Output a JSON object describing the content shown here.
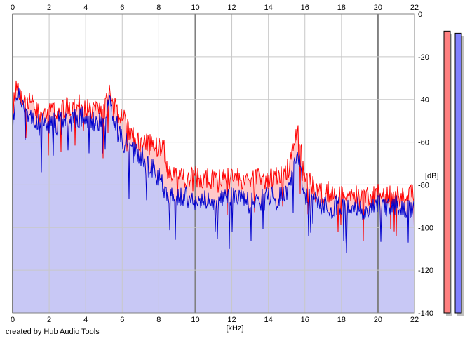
{
  "colors": {
    "background": "#ffffff",
    "plot_background": "#ffffff",
    "grid": "#c8c8c8",
    "grid_major": "#808080",
    "left_line": "#ff0000",
    "left_fill": "#ffc8c8",
    "right_line": "#0000cc",
    "right_fill": "#c8c8f5",
    "left_meter": "#ff8080",
    "right_meter": "#8080ff",
    "meter_shadow": "#c0c0c0"
  },
  "credit": "created by Hub Audio Tools",
  "chart_data": {
    "type": "area",
    "title": "",
    "xlabel": "[kHz]",
    "ylabel": "[dB]",
    "xlim": [
      0,
      22
    ],
    "ylim": [
      -140,
      0
    ],
    "x_ticks": [
      "0",
      "2",
      "4",
      "6",
      "8",
      "10",
      "12",
      "14",
      "16",
      "18",
      "20",
      "22"
    ],
    "y_ticks": [
      "0",
      "-20",
      "-40",
      "-60",
      "-80",
      "-100",
      "-120",
      "-140"
    ],
    "x_major_ticks": [
      0,
      10,
      20
    ],
    "grid": true,
    "series": [
      {
        "channel": "left",
        "color": "#ff0000",
        "x": [
          0,
          0.2,
          0.5,
          1,
          1.5,
          2,
          2.5,
          3,
          3.5,
          4,
          4.5,
          5,
          5.3,
          5.5,
          6,
          6.5,
          7,
          7.5,
          8,
          8.2,
          8.5,
          9,
          9.5,
          10,
          10.5,
          11,
          11.5,
          12,
          12.5,
          13,
          13.5,
          14,
          14.5,
          15,
          15.3,
          15.5,
          15.7,
          16,
          16.5,
          17,
          17.5,
          18,
          18.5,
          19,
          19.5,
          20,
          20.5,
          21,
          21.5,
          22
        ],
        "values": [
          -42,
          -28,
          -34,
          -38,
          -42,
          -40,
          -41,
          -40,
          -39,
          -40,
          -40,
          -42,
          -30,
          -38,
          -45,
          -52,
          -56,
          -56,
          -58,
          -55,
          -70,
          -71,
          -72,
          -72,
          -72,
          -73,
          -72,
          -72,
          -73,
          -73,
          -72,
          -73,
          -72,
          -70,
          -60,
          -50,
          -55,
          -72,
          -78,
          -79,
          -80,
          -80,
          -81,
          -82,
          -81,
          -81,
          -80,
          -81,
          -80,
          -82
        ]
      },
      {
        "channel": "right",
        "color": "#0000cc",
        "x": [
          0,
          0.2,
          0.5,
          1,
          1.5,
          2,
          2.5,
          3,
          3.5,
          4,
          4.5,
          5,
          5.3,
          5.5,
          6,
          6.5,
          7,
          7.5,
          8,
          8.2,
          8.5,
          9,
          9.5,
          10,
          10.5,
          11,
          11.5,
          12,
          12.5,
          13,
          13.5,
          14,
          14.5,
          15,
          15.3,
          15.5,
          15.7,
          16,
          16.5,
          17,
          17.5,
          18,
          18.5,
          19,
          19.5,
          20,
          20.5,
          21,
          21.5,
          22
        ],
        "values": [
          -50,
          -32,
          -38,
          -44,
          -48,
          -46,
          -46,
          -46,
          -45,
          -45,
          -46,
          -46,
          -38,
          -44,
          -55,
          -60,
          -63,
          -66,
          -72,
          -76,
          -79,
          -80,
          -81,
          -82,
          -82,
          -83,
          -82,
          -82,
          -83,
          -83,
          -82,
          -82,
          -82,
          -80,
          -72,
          -60,
          -66,
          -82,
          -84,
          -85,
          -86,
          -85,
          -86,
          -87,
          -86,
          -85,
          -85,
          -86,
          -86,
          -87
        ]
      }
    ],
    "meters": [
      {
        "channel": "left",
        "level_db": -8
      },
      {
        "channel": "right",
        "level_db": -9
      }
    ]
  }
}
